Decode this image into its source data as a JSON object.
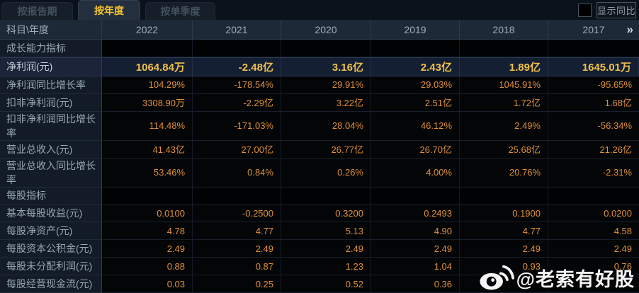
{
  "tabs": [
    {
      "label": "按报告期",
      "active": false
    },
    {
      "label": "按年度",
      "active": true
    },
    {
      "label": "按单季度",
      "active": false
    }
  ],
  "controls": {
    "show_yoy_label": "显示同比"
  },
  "table": {
    "corner_label": "科目\\年度",
    "years": [
      "2022",
      "2021",
      "2020",
      "2019",
      "2018",
      "2017"
    ],
    "more_icon": "»",
    "rows": [
      {
        "label": "成长能力指标",
        "type": "section",
        "values": [
          "",
          "",
          "",
          "",
          "",
          ""
        ]
      },
      {
        "label": "净利润(元)",
        "type": "highlight",
        "values": [
          "1064.84万",
          "-2.48亿",
          "3.16亿",
          "2.43亿",
          "1.89亿",
          "1645.01万"
        ]
      },
      {
        "label": "净利润同比增长率",
        "type": "data",
        "values": [
          "104.29%",
          "-178.54%",
          "29.91%",
          "29.03%",
          "1045.91%",
          "-95.65%"
        ]
      },
      {
        "label": "扣非净利润(元)",
        "type": "data",
        "values": [
          "3308.90万",
          "-2.29亿",
          "3.22亿",
          "2.51亿",
          "1.72亿",
          "1.68亿"
        ]
      },
      {
        "label": "扣非净利润同比增长率",
        "type": "data",
        "values": [
          "114.48%",
          "-171.03%",
          "28.04%",
          "46.12%",
          "2.49%",
          "-56.34%"
        ]
      },
      {
        "label": "营业总收入(元)",
        "type": "data",
        "values": [
          "41.43亿",
          "27.00亿",
          "26.77亿",
          "26.70亿",
          "25.68亿",
          "21.26亿"
        ]
      },
      {
        "label": "营业总收入同比增长率",
        "type": "data",
        "values": [
          "53.46%",
          "0.84%",
          "0.26%",
          "4.00%",
          "20.76%",
          "-2.31%"
        ]
      },
      {
        "label": "每股指标",
        "type": "section",
        "values": [
          "",
          "",
          "",
          "",
          "",
          ""
        ]
      },
      {
        "label": "基本每股收益(元)",
        "type": "data",
        "values": [
          "0.0100",
          "-0.2500",
          "0.3200",
          "0.2493",
          "0.1900",
          "0.0200"
        ]
      },
      {
        "label": "每股净资产(元)",
        "type": "data",
        "values": [
          "4.78",
          "4.77",
          "5.13",
          "4.90",
          "4.77",
          "4.58"
        ]
      },
      {
        "label": "每股资本公积金(元)",
        "type": "data",
        "values": [
          "2.49",
          "2.49",
          "2.49",
          "2.49",
          "2.49",
          "2.49"
        ]
      },
      {
        "label": "每股未分配利润(元)",
        "type": "data",
        "values": [
          "0.88",
          "0.87",
          "1.23",
          "1.04",
          "0.93",
          "0.76"
        ]
      },
      {
        "label": "每股经营现金流(元)",
        "type": "data",
        "values": [
          "0.03",
          "0.25",
          "0.52",
          "0.36",
          "",
          ""
        ]
      }
    ]
  },
  "watermark": {
    "text": "@老索有好股",
    "icon": "weibo-icon"
  },
  "colors": {
    "value_orange": "#e08f38",
    "highlight_gold": "#f1c04a",
    "active_tab_text": "#f5c12c",
    "header_bg": "#1d2936",
    "label_bg": "#121b26",
    "highlight_row_bg": "#141f33"
  }
}
